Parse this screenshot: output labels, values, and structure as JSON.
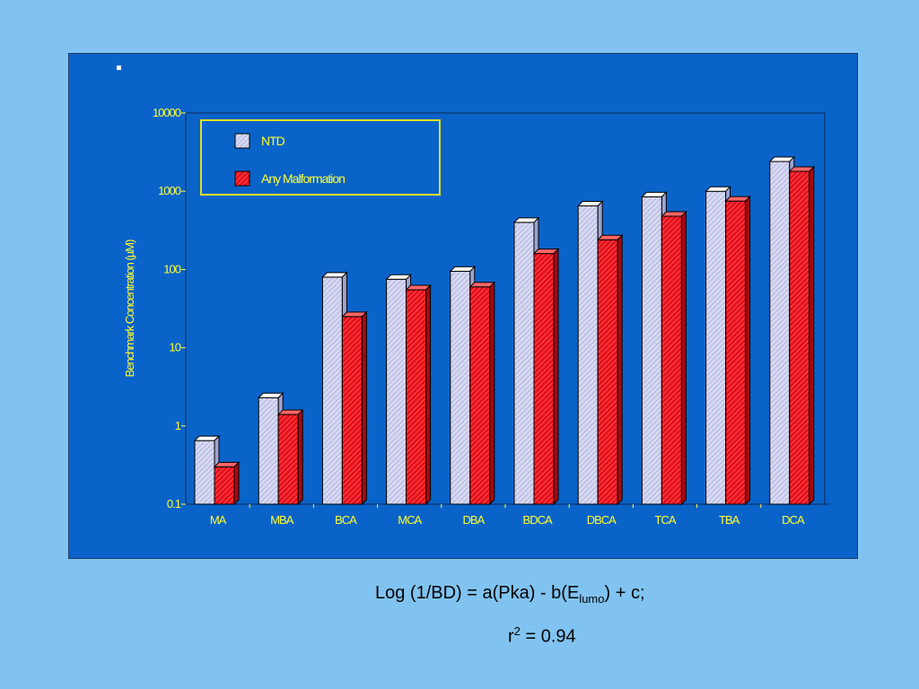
{
  "chart_data": {
    "type": "bar",
    "ylabel": "Benchmark Concentration (µM)",
    "yscale": "log",
    "ylim": [
      0.1,
      10000
    ],
    "yticks": [
      "0.1",
      "1",
      "10",
      "100",
      "1000",
      "10000"
    ],
    "categories": [
      "MA",
      "MBA",
      "BCA",
      "MCA",
      "DBA",
      "BDCA",
      "DBCA",
      "TCA",
      "TBA",
      "DCA"
    ],
    "series": [
      {
        "name": "NTD",
        "values": [
          0.65,
          2.3,
          80,
          75,
          95,
          400,
          650,
          850,
          1000,
          2400
        ]
      },
      {
        "name": "Any Malformation",
        "values": [
          0.3,
          1.4,
          25,
          55,
          60,
          160,
          240,
          480,
          750,
          1800
        ]
      }
    ],
    "legend_placement": "top-left",
    "grid": false
  },
  "colors": {
    "background": "#80c3f0",
    "panel": "#0a63c9",
    "axis_text": "#ffff33",
    "legend_border": "#e0e020",
    "ntd_fill": "#d7d9f2",
    "malformation_fill": "#e8101a"
  },
  "formula": {
    "line1_prefix": "Log (1/BD) = a(Pka) - b(E",
    "line1_sub": "lumo",
    "line1_suffix": ") + c;",
    "line2_r": "r",
    "line2_sup": "2",
    "line2_suffix": " = 0.94"
  }
}
